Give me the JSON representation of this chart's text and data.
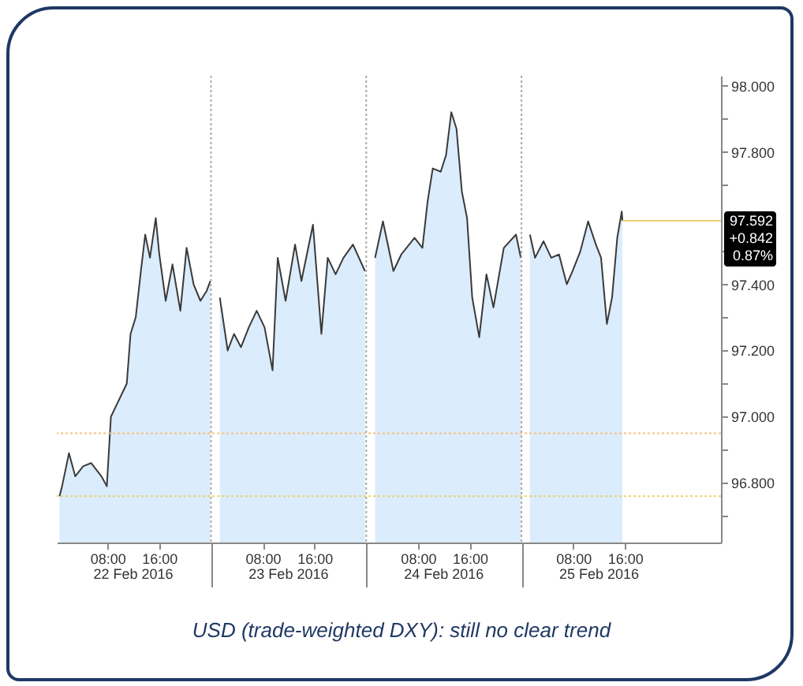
{
  "chart_data": {
    "type": "area",
    "x": [
      "2016-02-22T00:35",
      "2016-02-22T00:59",
      "2016-02-22T02:03",
      "2016-02-22T03:01",
      "2016-02-22T04:14",
      "2016-02-22T05:28",
      "2016-02-22T07:04",
      "2016-02-22T07:54",
      "2016-02-22T08:32",
      "2016-02-22T09:31",
      "2016-02-22T10:59",
      "2016-02-22T11:34",
      "2016-02-22T12:22",
      "2016-02-22T13:10",
      "2016-02-22T13:50",
      "2016-02-22T14:34",
      "2016-02-22T15:28",
      "2016-02-22T16:01",
      "2016-02-22T17:00",
      "2016-02-22T18:03",
      "2016-02-22T19:16",
      "2016-02-22T20:14",
      "2016-02-22T21:19",
      "2016-02-22T22:22",
      "2016-02-22T23:20",
      "2016-02-22T23:54",
      "2016-02-23T00:30",
      "2016-02-23T01:22",
      "2016-02-23T02:35",
      "2016-02-23T03:34",
      "2016-02-23T04:38",
      "2016-02-23T05:51",
      "2016-02-23T07:04",
      "2016-02-23T08:17",
      "2016-02-23T09:31",
      "2016-02-23T10:19",
      "2016-02-23T11:32",
      "2016-02-23T13:00",
      "2016-02-23T13:59",
      "2016-02-23T15:46",
      "2016-02-23T17:04",
      "2016-02-23T18:03",
      "2016-02-23T19:16",
      "2016-02-23T20:29",
      "2016-02-23T21:57",
      "2016-02-23T23:48",
      "2016-02-24T00:30",
      "2016-02-24T01:22",
      "2016-02-24T02:35",
      "2016-02-24T04:12",
      "2016-02-24T05:25",
      "2016-02-24T07:28",
      "2016-02-24T08:41",
      "2016-02-24T09:29",
      "2016-02-24T10:17",
      "2016-02-24T11:31",
      "2016-02-24T12:20",
      "2016-02-24T13:09",
      "2016-02-24T13:57",
      "2016-02-24T14:47",
      "2016-02-24T15:35",
      "2016-02-24T16:23",
      "2016-02-24T17:28",
      "2016-02-24T18:35",
      "2016-02-24T19:40",
      "2016-02-24T21:16",
      "2016-02-24T23:09",
      "2016-02-24T23:54",
      "2016-02-25T00:30",
      "2016-02-25T01:18",
      "2016-02-25T02:06",
      "2016-02-25T03:24",
      "2016-02-25T04:36",
      "2016-02-25T05:48",
      "2016-02-25T07:00",
      "2016-02-25T07:54",
      "2016-02-25T09:06",
      "2016-02-25T10:18",
      "2016-02-25T11:30",
      "2016-02-25T12:18",
      "2016-02-25T13:12",
      "2016-02-25T14:00",
      "2016-02-25T14:48",
      "2016-02-25T15:30",
      "2016-02-25T15:36"
    ],
    "series": [
      {
        "color": "#cce4fb",
        "values": [
          96.76,
          96.79,
          96.89,
          96.82,
          96.85,
          96.86,
          96.82,
          96.79,
          97.0,
          97.04,
          97.1,
          97.25,
          97.3,
          97.44,
          97.55,
          97.48,
          97.6,
          97.49,
          97.35,
          97.46,
          97.32,
          97.51,
          97.4,
          97.35,
          97.38,
          97.41,
          null,
          97.36,
          97.2,
          97.25,
          97.21,
          97.27,
          97.32,
          97.27,
          97.14,
          97.48,
          97.35,
          97.52,
          97.41,
          97.58,
          97.25,
          97.48,
          97.43,
          97.48,
          97.52,
          97.44,
          null,
          97.48,
          97.59,
          97.44,
          97.49,
          97.54,
          97.51,
          97.65,
          97.75,
          97.74,
          97.79,
          97.92,
          97.87,
          97.68,
          97.6,
          97.36,
          97.24,
          97.43,
          97.33,
          97.51,
          97.55,
          97.48,
          null,
          97.55,
          97.48,
          97.53,
          97.48,
          97.49,
          97.4,
          97.44,
          97.5,
          97.59,
          97.52,
          97.48,
          97.28,
          97.36,
          97.54,
          97.62,
          97.592
        ]
      }
    ],
    "xlim": [
      "2016-02-22T00:10",
      "2016-02-26T06:50"
    ],
    "xticks": [
      {
        "value": "2016-02-22T08:00",
        "label": "08:00"
      },
      {
        "value": "2016-02-22T16:00",
        "label": "16:00"
      },
      {
        "value": "2016-02-23T00:00",
        "label": null
      },
      {
        "value": "2016-02-23T08:00",
        "label": "08:00"
      },
      {
        "value": "2016-02-23T16:00",
        "label": "16:00"
      },
      {
        "value": "2016-02-24T00:00",
        "label": null
      },
      {
        "value": "2016-02-24T08:00",
        "label": "08:00"
      },
      {
        "value": "2016-02-24T16:00",
        "label": "16:00"
      },
      {
        "value": "2016-02-25T00:00",
        "label": null
      },
      {
        "value": "2016-02-25T08:00",
        "label": "08:00"
      },
      {
        "value": "2016-02-25T16:00",
        "label": "16:00"
      }
    ],
    "ylim": [
      96.62,
      98.03
    ],
    "yticks": [
      {
        "value": 96.7,
        "label": null
      },
      {
        "value": 96.8,
        "label": "96.800"
      },
      {
        "value": 96.9,
        "label": null
      },
      {
        "value": 97.0,
        "label": "97.000"
      },
      {
        "value": 97.1,
        "label": null
      },
      {
        "value": 97.2,
        "label": "97.200"
      },
      {
        "value": 97.3,
        "label": null
      },
      {
        "value": 97.4,
        "label": "97.400"
      },
      {
        "value": 97.5,
        "label": null
      },
      {
        "value": 97.7,
        "label": null
      },
      {
        "value": 97.8,
        "label": "97.800"
      },
      {
        "value": 97.9,
        "label": null
      },
      {
        "value": 98.0,
        "label": "98.000"
      }
    ],
    "ref_lines": [
      {
        "axis": "x",
        "value": "2016-02-23T00:00",
        "color": "#aaaaaa",
        "line_style": "dotted"
      },
      {
        "axis": "x",
        "value": "2016-02-24T00:00",
        "color": "#aaaaaa",
        "line_style": "dotted"
      },
      {
        "axis": "x",
        "value": "2016-02-25T00:00",
        "color": "#aaaaaa",
        "line_style": "dotted"
      },
      {
        "axis": "y",
        "value": 96.95,
        "color": "#f7c27e",
        "line_style": "dotted"
      },
      {
        "axis": "y",
        "value": 96.76,
        "color": "#e6d46c",
        "line_style": "dotted"
      },
      {
        "axis": "y",
        "value": 97.592,
        "label": "97.592",
        "color": "#f0cf6c",
        "line_style": "solid"
      }
    ],
    "annotations": [
      "22 Feb 2016",
      "23 Feb 2016",
      "24 Feb 2016",
      "25 Feb 2016",
      "+0.842",
      "0.87%",
      "USD (trade-weighted DXY): still no clear trend"
    ]
  }
}
